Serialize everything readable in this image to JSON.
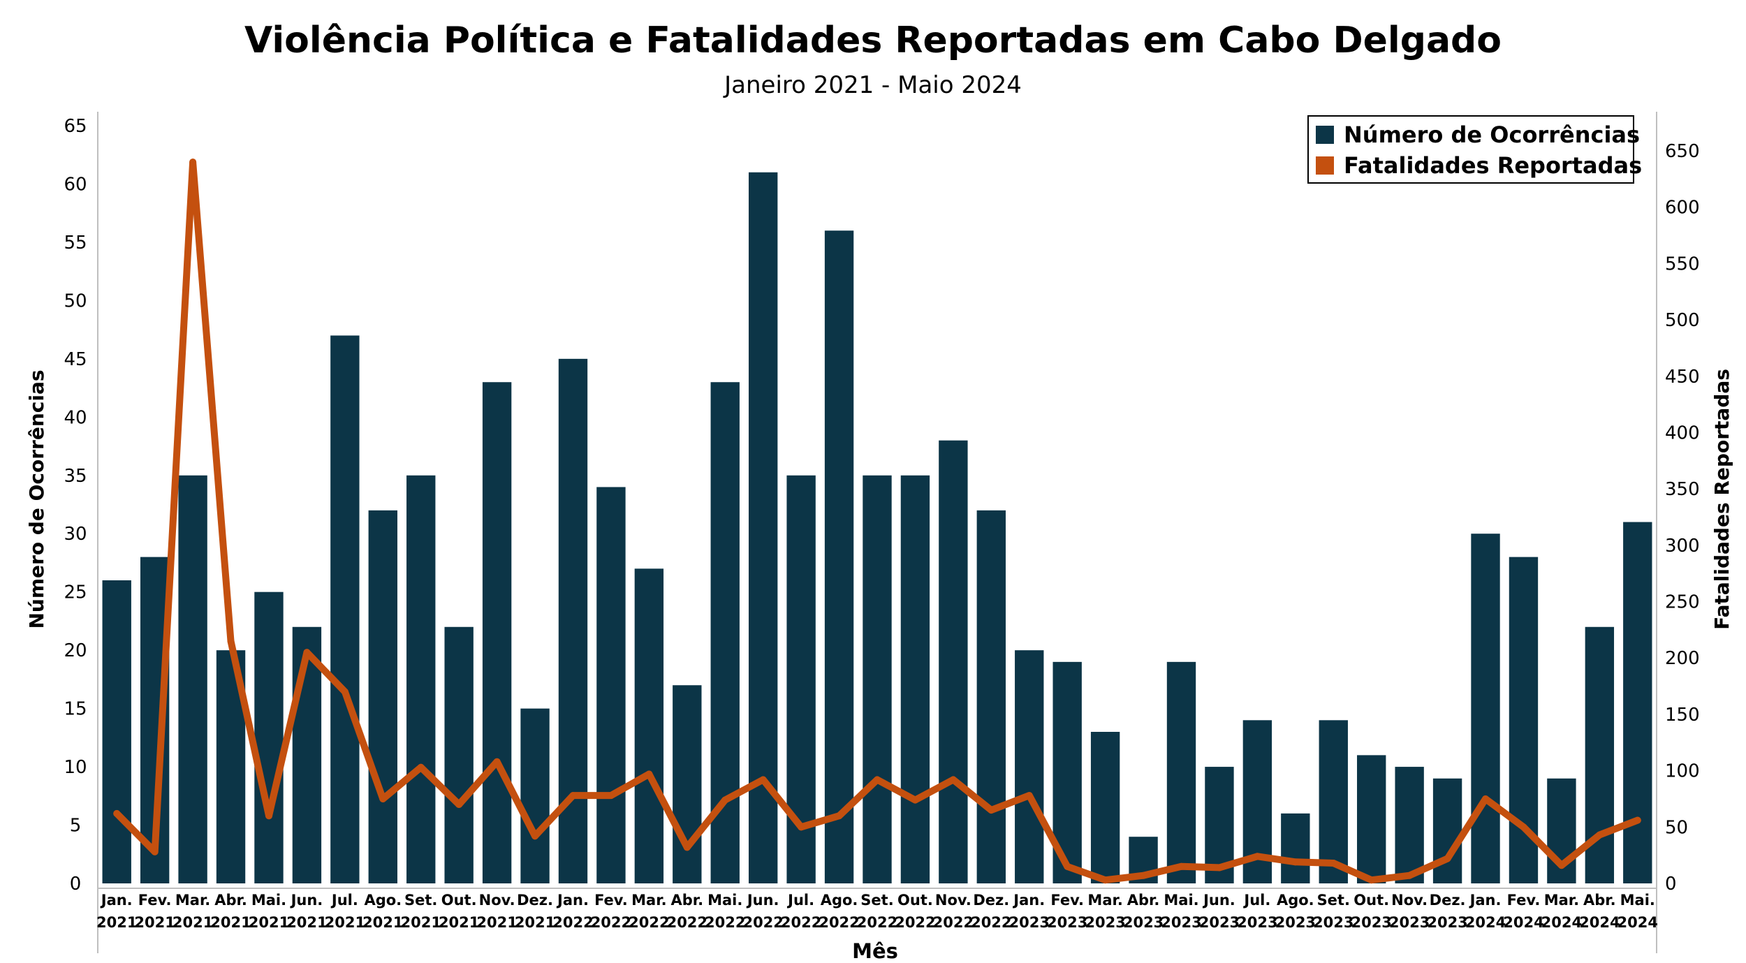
{
  "chart_data": {
    "type": "bar",
    "title": "Violência Política e Fatalidades Reportadas em Cabo Delgado",
    "subtitle": "Janeiro 2021 - Maio 2024",
    "xlabel": "Mês",
    "ylabel": "Número de Ocorrências",
    "y2label": "Fatalidades Reportadas",
    "ylim": [
      0,
      65
    ],
    "y2lim": [
      0,
      650
    ],
    "y_ticks": [
      0,
      5,
      10,
      15,
      20,
      25,
      30,
      35,
      40,
      45,
      50,
      55,
      60,
      65
    ],
    "y2_ticks": [
      0,
      50,
      100,
      150,
      200,
      250,
      300,
      350,
      400,
      450,
      500,
      550,
      600,
      650
    ],
    "categories": [
      [
        "Jan.",
        "2021"
      ],
      [
        "Fev.",
        "2021"
      ],
      [
        "Mar.",
        "2021"
      ],
      [
        "Abr.",
        "2021"
      ],
      [
        "Mai.",
        "2021"
      ],
      [
        "Jun.",
        "2021"
      ],
      [
        "Jul.",
        "2021"
      ],
      [
        "Ago.",
        "2021"
      ],
      [
        "Set.",
        "2021"
      ],
      [
        "Out.",
        "2021"
      ],
      [
        "Nov.",
        "2021"
      ],
      [
        "Dez.",
        "2021"
      ],
      [
        "Jan.",
        "2022"
      ],
      [
        "Fev.",
        "2022"
      ],
      [
        "Mar.",
        "2022"
      ],
      [
        "Abr.",
        "2022"
      ],
      [
        "Mai.",
        "2022"
      ],
      [
        "Jun.",
        "2022"
      ],
      [
        "Jul.",
        "2022"
      ],
      [
        "Ago.",
        "2022"
      ],
      [
        "Set.",
        "2022"
      ],
      [
        "Out.",
        "2022"
      ],
      [
        "Nov.",
        "2022"
      ],
      [
        "Dez.",
        "2022"
      ],
      [
        "Jan.",
        "2023"
      ],
      [
        "Fev.",
        "2023"
      ],
      [
        "Mar.",
        "2023"
      ],
      [
        "Abr.",
        "2023"
      ],
      [
        "Mai.",
        "2023"
      ],
      [
        "Jun.",
        "2023"
      ],
      [
        "Jul.",
        "2023"
      ],
      [
        "Ago.",
        "2023"
      ],
      [
        "Set.",
        "2023"
      ],
      [
        "Out.",
        "2023"
      ],
      [
        "Nov.",
        "2023"
      ],
      [
        "Dez.",
        "2023"
      ],
      [
        "Jan.",
        "2024"
      ],
      [
        "Fev.",
        "2024"
      ],
      [
        "Mar.",
        "2024"
      ],
      [
        "Abr.",
        "2024"
      ],
      [
        "Mai.",
        "2024"
      ]
    ],
    "series": [
      {
        "name": "Número de Ocorrências",
        "type": "bar",
        "axis": "left",
        "color": "#0c3547",
        "values": [
          26,
          28,
          35,
          20,
          25,
          22,
          47,
          32,
          35,
          22,
          43,
          15,
          45,
          34,
          27,
          17,
          43,
          61,
          35,
          56,
          35,
          35,
          38,
          32,
          20,
          19,
          13,
          4,
          19,
          10,
          14,
          6,
          14,
          11,
          10,
          9,
          30,
          28,
          9,
          22,
          31
        ]
      },
      {
        "name": "Fatalidades Reportadas",
        "type": "line",
        "axis": "right",
        "color": "#c4500f",
        "values": [
          62,
          28,
          640,
          215,
          60,
          205,
          170,
          75,
          103,
          70,
          108,
          42,
          78,
          78,
          97,
          32,
          74,
          92,
          50,
          60,
          92,
          74,
          92,
          65,
          78,
          15,
          3,
          7,
          15,
          14,
          24,
          19,
          18,
          3,
          7,
          22,
          75,
          50,
          16,
          43,
          56
        ]
      }
    ],
    "legend": "top-right",
    "grid": false
  }
}
